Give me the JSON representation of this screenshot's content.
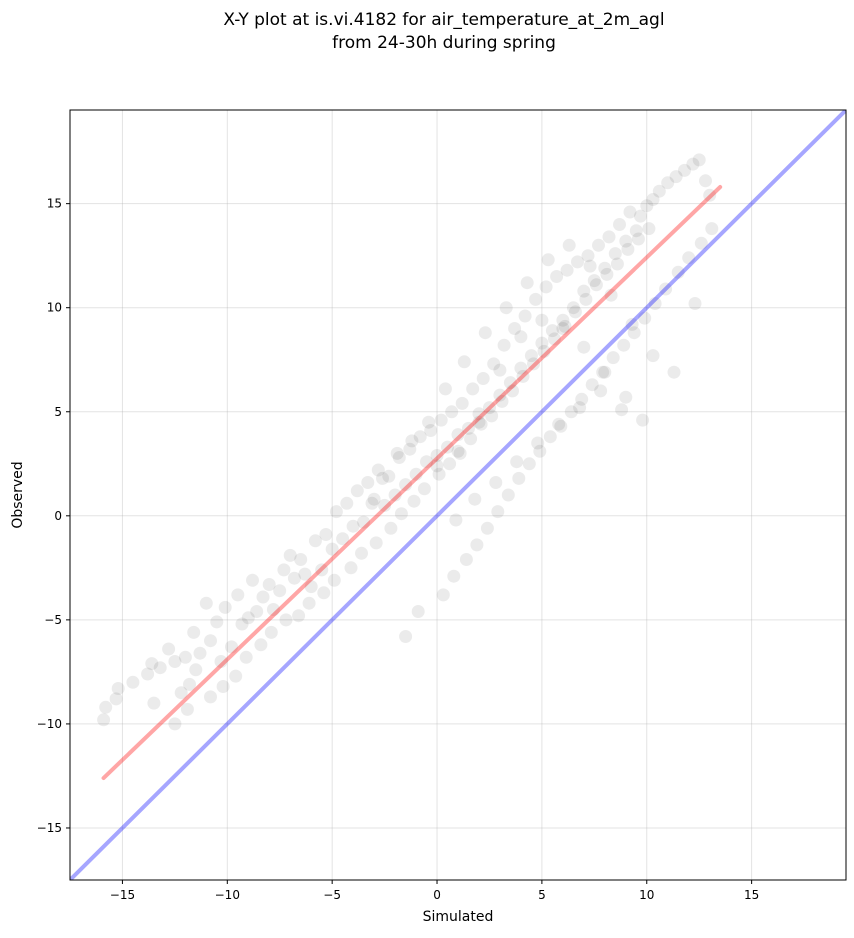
{
  "chart_data": {
    "type": "scatter",
    "title_line1": "X-Y plot at is.vi.4182 for air_temperature_at_2m_agl",
    "title_line2": "from 24-30h during spring",
    "xlabel": "Simulated",
    "ylabel": "Observed",
    "xlim": [
      -17.5,
      19.5
    ],
    "ylim": [
      -17.5,
      19.5
    ],
    "xticks": [
      -15,
      -10,
      -5,
      0,
      5,
      10,
      15
    ],
    "yticks": [
      -15,
      -10,
      -5,
      0,
      5,
      10,
      15
    ],
    "xtick_labels": [
      "−15",
      "−10",
      "−5",
      "0",
      "5",
      "10",
      "15"
    ],
    "ytick_labels": [
      "−15",
      "−10",
      "−5",
      "0",
      "5",
      "10",
      "15"
    ],
    "grid": true,
    "point_color": "#000000",
    "point_alpha": 0.08,
    "fit_line": {
      "color": "#ff0000",
      "alpha": 0.35,
      "x": [
        -15.9,
        13.5
      ],
      "y": [
        -12.6,
        15.8
      ]
    },
    "identity_line": {
      "color": "#0000ff",
      "alpha": 0.35,
      "x": [
        -17.5,
        19.5
      ],
      "y": [
        -17.5,
        19.5
      ]
    },
    "points": {
      "x": [
        -15.9,
        -15.8,
        -15.3,
        -15.2,
        -14.5,
        -13.8,
        -13.6,
        -13.5,
        -13.2,
        -12.8,
        -12.5,
        -12.2,
        -12.0,
        -11.8,
        -11.6,
        -11.5,
        -11.3,
        -11.0,
        -10.8,
        -10.5,
        -10.3,
        -10.1,
        -9.8,
        -9.5,
        -9.3,
        -9.0,
        -8.8,
        -8.6,
        -8.3,
        -8.0,
        -7.8,
        -7.5,
        -7.3,
        -7.0,
        -6.8,
        -6.5,
        -6.3,
        -6.0,
        -5.8,
        -5.5,
        -5.3,
        -5.0,
        -4.8,
        -4.5,
        -4.3,
        -4.0,
        -3.8,
        -3.5,
        -3.3,
        -3.0,
        -2.8,
        -2.5,
        -2.3,
        -2.0,
        -1.8,
        -1.5,
        -1.3,
        -1.0,
        -0.8,
        -0.5,
        -0.3,
        0.0,
        0.2,
        0.5,
        0.7,
        1.0,
        1.2,
        1.5,
        1.7,
        2.0,
        2.2,
        2.5,
        2.7,
        3.0,
        3.2,
        3.5,
        3.7,
        4.0,
        4.2,
        4.5,
        4.7,
        5.0,
        5.2,
        5.5,
        5.7,
        6.0,
        6.2,
        6.5,
        6.7,
        7.0,
        7.2,
        7.5,
        7.7,
        8.0,
        8.2,
        8.5,
        8.7,
        9.0,
        9.2,
        9.5,
        9.7,
        10.0,
        10.3,
        10.6,
        11.0,
        11.4,
        11.8,
        12.2,
        12.5,
        12.8,
        13.0,
        -12.5,
        -11.9,
        -10.8,
        -10.2,
        -9.6,
        -9.1,
        -8.4,
        -7.9,
        -7.2,
        -6.6,
        -6.1,
        -5.4,
        -4.9,
        -4.1,
        -3.6,
        -2.9,
        -2.2,
        -1.7,
        -1.1,
        -0.6,
        0.1,
        0.6,
        1.1,
        1.6,
        2.1,
        2.6,
        3.1,
        3.6,
        4.1,
        4.6,
        5.1,
        5.6,
        6.1,
        6.6,
        7.1,
        7.6,
        8.1,
        8.6,
        9.1,
        9.6,
        10.1,
        -1.5,
        -0.9,
        0.3,
        0.8,
        1.4,
        1.9,
        2.4,
        2.9,
        3.4,
        3.9,
        4.4,
        4.9,
        5.4,
        5.9,
        6.4,
        6.9,
        7.4,
        7.9,
        8.4,
        8.9,
        9.4,
        9.9,
        10.4,
        10.9,
        11.5,
        12.0,
        12.6,
        13.1,
        0.4,
        1.3,
        2.3,
        3.3,
        4.3,
        5.3,
        6.3,
        7.3,
        8.3,
        9.3,
        10.3,
        11.3,
        12.3,
        -0.4,
        -1.9,
        -2.6,
        -3.1,
        0.9,
        1.8,
        2.8,
        3.8,
        4.8,
        5.8,
        6.8,
        7.8,
        8.8,
        9.8,
        -1.2,
        0.0,
        1.0,
        2.0,
        3.0,
        4.0,
        5.0,
        6.0,
        7.0,
        8.0,
        9.0
      ],
      "y": [
        -9.8,
        -9.2,
        -8.8,
        -8.3,
        -8.0,
        -7.6,
        -7.1,
        -9.0,
        -7.3,
        -6.4,
        -7.0,
        -8.5,
        -6.8,
        -8.1,
        -5.6,
        -7.4,
        -6.6,
        -4.2,
        -6.0,
        -5.1,
        -7.0,
        -4.4,
        -6.3,
        -3.8,
        -5.2,
        -4.9,
        -3.1,
        -4.6,
        -3.9,
        -3.3,
        -4.5,
        -3.6,
        -2.6,
        -1.9,
        -3.0,
        -2.1,
        -2.8,
        -3.4,
        -1.2,
        -2.6,
        -0.9,
        -1.6,
        0.2,
        -1.1,
        0.6,
        -0.5,
        1.2,
        -0.3,
        1.6,
        0.8,
        2.2,
        0.5,
        1.9,
        1.0,
        2.8,
        1.5,
        3.2,
        2.0,
        3.8,
        2.6,
        4.1,
        2.9,
        4.6,
        3.3,
        5.0,
        3.9,
        5.4,
        4.2,
        6.1,
        4.5,
        6.6,
        5.2,
        7.3,
        5.8,
        8.2,
        6.4,
        9.0,
        7.1,
        9.6,
        7.7,
        10.4,
        8.3,
        11.0,
        8.9,
        11.5,
        9.4,
        11.8,
        10.0,
        12.2,
        10.8,
        12.5,
        11.3,
        13.0,
        11.9,
        13.4,
        12.6,
        14.0,
        13.2,
        14.6,
        13.7,
        14.4,
        14.9,
        15.2,
        15.6,
        16.0,
        16.3,
        16.6,
        16.9,
        17.1,
        16.1,
        15.4,
        -10.0,
        -9.3,
        -8.7,
        -8.2,
        -7.7,
        -6.8,
        -6.2,
        -5.6,
        -5.0,
        -4.8,
        -4.2,
        -3.7,
        -3.1,
        -2.5,
        -1.8,
        -1.3,
        -0.6,
        0.1,
        0.7,
        1.3,
        2.0,
        2.5,
        3.0,
        3.7,
        4.4,
        4.8,
        5.5,
        6.0,
        6.7,
        7.3,
        7.9,
        8.5,
        9.1,
        9.8,
        10.4,
        11.1,
        11.6,
        12.1,
        12.8,
        13.3,
        13.8,
        -5.8,
        -4.6,
        -3.8,
        -2.9,
        -2.1,
        -1.4,
        -0.6,
        0.2,
        1.0,
        1.8,
        2.5,
        3.1,
        3.8,
        4.3,
        5.0,
        5.6,
        6.3,
        6.9,
        7.6,
        8.2,
        8.8,
        9.5,
        10.2,
        10.9,
        11.7,
        12.4,
        13.1,
        13.8,
        6.1,
        7.4,
        8.8,
        10.0,
        11.2,
        12.3,
        13.0,
        12.0,
        10.6,
        9.2,
        7.7,
        6.9,
        10.2,
        4.5,
        3.0,
        1.8,
        0.6,
        -0.2,
        0.8,
        1.6,
        2.6,
        3.5,
        4.4,
        5.2,
        6.0,
        5.1,
        4.6,
        3.6,
        2.4,
        3.1,
        4.9,
        7.0,
        8.6,
        9.4,
        9.0,
        8.1,
        6.9,
        5.7
      ]
    }
  }
}
